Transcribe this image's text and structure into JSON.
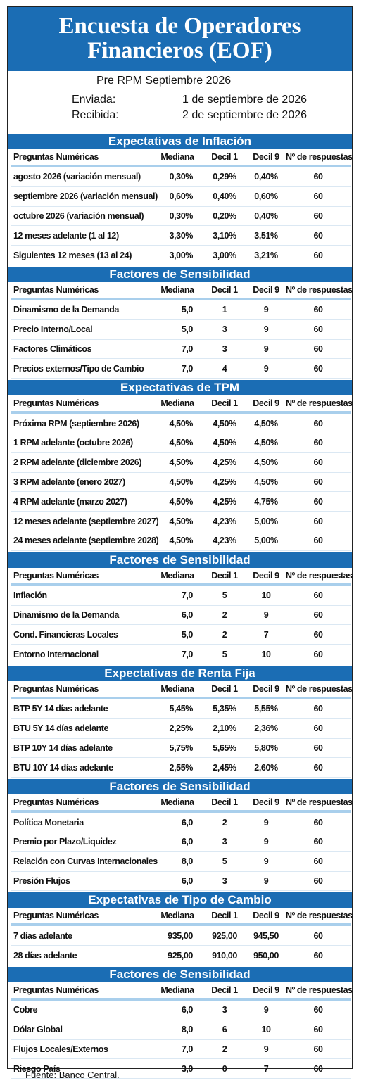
{
  "header": {
    "title_lines": [
      "Encuesta de Operadores",
      "Financieros (EOF)"
    ],
    "subtitle": "Pre RPM Septiembre 2026",
    "sent_label": "Enviada:",
    "sent_date": "1 de septiembre de 2026",
    "received_label": "Recibida:",
    "received_date": "2 de septiembre de 2026"
  },
  "sections": [
    {
      "title": "Expectativas de Inflación",
      "columns": [
        "Preguntas Numéricas",
        "Mediana",
        "Decil 1",
        "Decil 9",
        "Nº de respuestas"
      ],
      "rows": [
        [
          "agosto 2026 (variación mensual)",
          "0,30%",
          "0,29%",
          "0,40%",
          "60"
        ],
        [
          "septiembre 2026 (variación mensual)",
          "0,60%",
          "0,40%",
          "0,60%",
          "60"
        ],
        [
          "octubre 2026 (variación mensual)",
          "0,30%",
          "0,20%",
          "0,40%",
          "60"
        ],
        [
          "12 meses adelante (1 al 12)",
          "3,30%",
          "3,10%",
          "3,51%",
          "60"
        ],
        [
          "Siguientes 12 meses (13 al 24)",
          "3,00%",
          "3,00%",
          "3,21%",
          "60"
        ]
      ]
    },
    {
      "title": "Factores de Sensibilidad",
      "columns": [
        "Preguntas Numéricas",
        "Mediana",
        "Decil 1",
        "Decil 9",
        "Nº de respuestas"
      ],
      "rows": [
        [
          "Dinamismo de la Demanda",
          "5,0",
          "1",
          "9",
          "60"
        ],
        [
          "Precio Interno/Local",
          "5,0",
          "3",
          "9",
          "60"
        ],
        [
          "Factores Climáticos",
          "7,0",
          "3",
          "9",
          "60"
        ],
        [
          "Precios externos/Tipo de Cambio",
          "7,0",
          "4",
          "9",
          "60"
        ]
      ]
    },
    {
      "title": "Expectativas de TPM",
      "columns": [
        "Preguntas Numéricas",
        "Mediana",
        "Decil 1",
        "Decil 9",
        "Nº de respuestas"
      ],
      "rows": [
        [
          "Próxima RPM (septiembre 2026)",
          "4,50%",
          "4,50%",
          "4,50%",
          "60"
        ],
        [
          "1 RPM adelante (octubre 2026)",
          "4,50%",
          "4,50%",
          "4,50%",
          "60"
        ],
        [
          "2 RPM adelante (diciembre 2026)",
          "4,50%",
          "4,25%",
          "4,50%",
          "60"
        ],
        [
          "3 RPM adelante (enero 2027)",
          "4,50%",
          "4,25%",
          "4,50%",
          "60"
        ],
        [
          "4 RPM adelante (marzo 2027)",
          "4,50%",
          "4,25%",
          "4,75%",
          "60"
        ],
        [
          "12 meses adelante (septiembre 2027)",
          "4,50%",
          "4,23%",
          "5,00%",
          "60"
        ],
        [
          "24 meses adelante (septiembre 2028)",
          "4,50%",
          "4,23%",
          "5,00%",
          "60"
        ]
      ]
    },
    {
      "title": "Factores de Sensibilidad",
      "columns": [
        "Preguntas Numéricas",
        "Mediana",
        "Decil 1",
        "Decil 9",
        "Nº de respuestas"
      ],
      "rows": [
        [
          "Inflación",
          "7,0",
          "5",
          "10",
          "60"
        ],
        [
          "Dinamismo de la Demanda",
          "6,0",
          "2",
          "9",
          "60"
        ],
        [
          "Cond. Financieras Locales",
          "5,0",
          "2",
          "7",
          "60"
        ],
        [
          "Entorno Internacional",
          "7,0",
          "5",
          "10",
          "60"
        ]
      ]
    },
    {
      "title": "Expectativas de Renta Fija",
      "columns": [
        "Preguntas Numéricas",
        "Mediana",
        "Decil 1",
        "Decil 9",
        "Nº de respuestas"
      ],
      "rows": [
        [
          "BTP 5Y 14 días adelante",
          "5,45%",
          "5,35%",
          "5,55%",
          "60"
        ],
        [
          "BTU 5Y 14 días adelante",
          "2,25%",
          "2,10%",
          "2,36%",
          "60"
        ],
        [
          "BTP 10Y 14 días adelante",
          "5,75%",
          "5,65%",
          "5,80%",
          "60"
        ],
        [
          "BTU 10Y 14 días adelante",
          "2,55%",
          "2,45%",
          "2,60%",
          "60"
        ]
      ]
    },
    {
      "title": "Factores de Sensibilidad",
      "columns": [
        "Preguntas Numéricas",
        "Mediana",
        "Decil 1",
        "Decil 9",
        "Nº de respuestas"
      ],
      "rows": [
        [
          "Política Monetaria",
          "6,0",
          "2",
          "9",
          "60"
        ],
        [
          "Premio por Plazo/Liquidez",
          "6,0",
          "3",
          "9",
          "60"
        ],
        [
          "Relación con Curvas Internacionales",
          "8,0",
          "5",
          "9",
          "60"
        ],
        [
          "Presión Flujos",
          "6,0",
          "3",
          "9",
          "60"
        ]
      ]
    },
    {
      "title": "Expectativas de Tipo de Cambio",
      "columns": [
        "Preguntas Numéricas",
        "Mediana",
        "Decil 1",
        "Decil 9",
        "Nº de respuestas"
      ],
      "rows": [
        [
          "7 días adelante",
          "935,00",
          "925,00",
          "945,50",
          "60"
        ],
        [
          "28 días adelante",
          "925,00",
          "910,00",
          "950,00",
          "60"
        ]
      ]
    },
    {
      "title": "Factores de Sensibilidad",
      "columns": [
        "Preguntas Numéricas",
        "Mediana",
        "Decil 1",
        "Decil 9",
        "Nº de respuestas"
      ],
      "rows": [
        [
          "Cobre",
          "6,0",
          "3",
          "9",
          "60"
        ],
        [
          "Dólar Global",
          "8,0",
          "6",
          "10",
          "60"
        ],
        [
          "Flujos Locales/Externos",
          "7,0",
          "2",
          "9",
          "60"
        ],
        [
          "Riesgo País",
          "3,0",
          "0",
          "7",
          "60"
        ]
      ]
    }
  ],
  "footer": {
    "source": "Fuente: Banco Central."
  }
}
